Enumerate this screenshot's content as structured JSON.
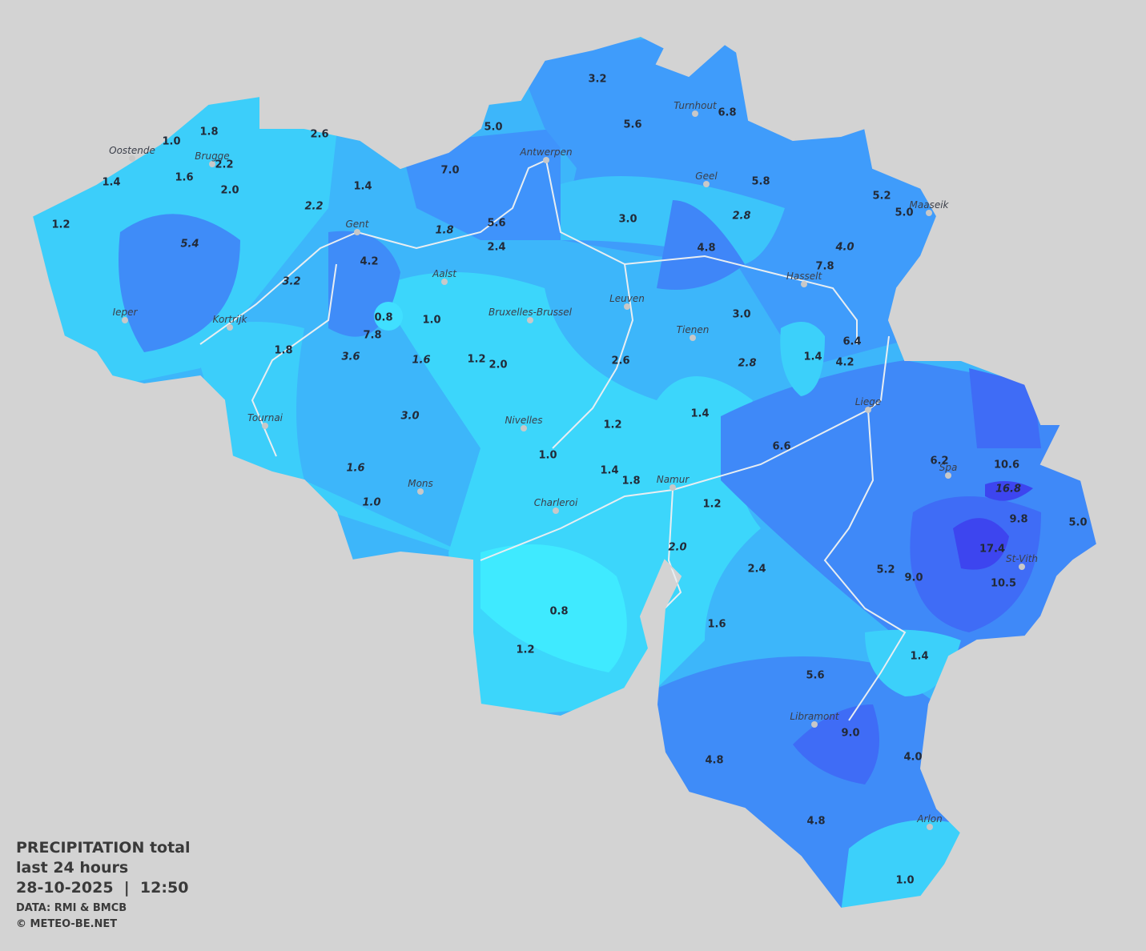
{
  "legend": {
    "title": "PRECIPITATION total",
    "period": "last 24 hours",
    "timestamp": "28-10-2025  |  12:50",
    "source": "DATA: RMI & BMCB",
    "copyright": "© METEO-BE.NET"
  },
  "stations": [
    {
      "value": "1.8",
      "italic": false
    },
    {
      "value": "1.0",
      "italic": false
    },
    {
      "value": "2.2",
      "italic": false
    },
    {
      "value": "1.6",
      "italic": false
    },
    {
      "value": "2.0",
      "italic": false
    },
    {
      "value": "1.4",
      "italic": false
    },
    {
      "value": "1.2",
      "italic": false
    },
    {
      "value": "5.4",
      "italic": true
    },
    {
      "value": "2.6",
      "italic": false
    },
    {
      "value": "1.4",
      "italic": false
    },
    {
      "value": "2.2",
      "italic": true
    },
    {
      "value": "3.2",
      "italic": true
    },
    {
      "value": "4.2",
      "italic": false
    },
    {
      "value": "0.8",
      "italic": false
    },
    {
      "value": "7.8",
      "italic": false
    },
    {
      "value": "1.0",
      "italic": false
    },
    {
      "value": "1.8",
      "italic": true
    },
    {
      "value": "3.6",
      "italic": true
    },
    {
      "value": "1.6",
      "italic": true
    },
    {
      "value": "1.2",
      "italic": false
    },
    {
      "value": "2.0",
      "italic": false
    },
    {
      "value": "1.8",
      "italic": false
    },
    {
      "value": "3.0",
      "italic": true
    },
    {
      "value": "1.6",
      "italic": true
    },
    {
      "value": "1.0",
      "italic": true
    },
    {
      "value": "5.0",
      "italic": false
    },
    {
      "value": "7.0",
      "italic": false
    },
    {
      "value": "5.6",
      "italic": false
    },
    {
      "value": "2.4",
      "italic": false
    },
    {
      "value": "3.2",
      "italic": false
    },
    {
      "value": "5.6",
      "italic": false
    },
    {
      "value": "6.8",
      "italic": false
    },
    {
      "value": "5.8",
      "italic": false
    },
    {
      "value": "3.0",
      "italic": false
    },
    {
      "value": "2.8",
      "italic": true
    },
    {
      "value": "4.8",
      "italic": false
    },
    {
      "value": "5.2",
      "italic": false
    },
    {
      "value": "5.0",
      "italic": false
    },
    {
      "value": "4.0",
      "italic": true
    },
    {
      "value": "7.8",
      "italic": false
    },
    {
      "value": "3.0",
      "italic": false
    },
    {
      "value": "1.4",
      "italic": false
    },
    {
      "value": "6.4",
      "italic": false
    },
    {
      "value": "4.2",
      "italic": false
    },
    {
      "value": "2.8",
      "italic": true
    },
    {
      "value": "2.6",
      "italic": false
    },
    {
      "value": "1.4",
      "italic": false
    },
    {
      "value": "1.2",
      "italic": false
    },
    {
      "value": "1.0",
      "italic": false
    },
    {
      "value": "1.4",
      "italic": false
    },
    {
      "value": "1.8",
      "italic": false
    },
    {
      "value": "6.6",
      "italic": false
    },
    {
      "value": "1.2",
      "italic": false
    },
    {
      "value": "2.0",
      "italic": true
    },
    {
      "value": "2.4",
      "italic": false
    },
    {
      "value": "1.6",
      "italic": false
    },
    {
      "value": "0.8",
      "italic": false
    },
    {
      "value": "1.2",
      "italic": false
    },
    {
      "value": "6.2",
      "italic": false
    },
    {
      "value": "10.6",
      "italic": false
    },
    {
      "value": "16.8",
      "italic": true
    },
    {
      "value": "9.8",
      "italic": false
    },
    {
      "value": "17.4",
      "italic": false
    },
    {
      "value": "5.0",
      "italic": false
    },
    {
      "value": "5.2",
      "italic": false
    },
    {
      "value": "9.0",
      "italic": false
    },
    {
      "value": "10.5",
      "italic": false
    },
    {
      "value": "1.4",
      "italic": false
    },
    {
      "value": "5.6",
      "italic": false
    },
    {
      "value": "9.0",
      "italic": false
    },
    {
      "value": "4.0",
      "italic": false
    },
    {
      "value": "4.8",
      "italic": false
    },
    {
      "value": "4.8",
      "italic": false
    },
    {
      "value": "1.0",
      "italic": false
    }
  ],
  "cities": [
    "Oostende",
    "Brugge",
    "Gent",
    "Antwerpen",
    "Turnhout",
    "Geel",
    "Maaseik",
    "Hasselt",
    "Aalst",
    "Ieper",
    "Kortrijk",
    "Bruxelles-Brussel",
    "Leuven",
    "Tienen",
    "Liege",
    "Tournai",
    "Nivelles",
    "Mons",
    "Namur",
    "Charleroi",
    "Spa",
    "St-Vith",
    "Libramont",
    "Arlon"
  ]
}
